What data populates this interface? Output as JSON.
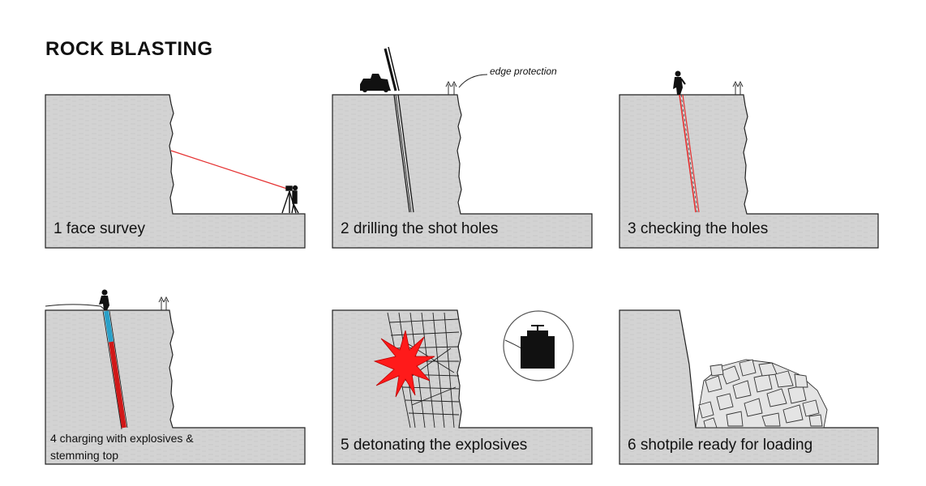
{
  "title": "ROCK BLASTING",
  "annotation": "edge protection",
  "panels": [
    {
      "step": 1,
      "caption": "1 face survey"
    },
    {
      "step": 2,
      "caption": "2 drilling the shot holes"
    },
    {
      "step": 3,
      "caption": "3 checking the holes"
    },
    {
      "step": 4,
      "caption_line1": "4 charging with explosives &",
      "caption_line2": "stemming top"
    },
    {
      "step": 5,
      "caption": "5 detonating the explosives"
    },
    {
      "step": 6,
      "caption": "6 shotpile ready for loading"
    }
  ],
  "colors": {
    "rock": "#d2d2d2",
    "outline": "#222222",
    "laser": "#e53030",
    "explosive": "#d01818",
    "stemming": "#2aa0c8",
    "blast": "#ff1a1a"
  }
}
